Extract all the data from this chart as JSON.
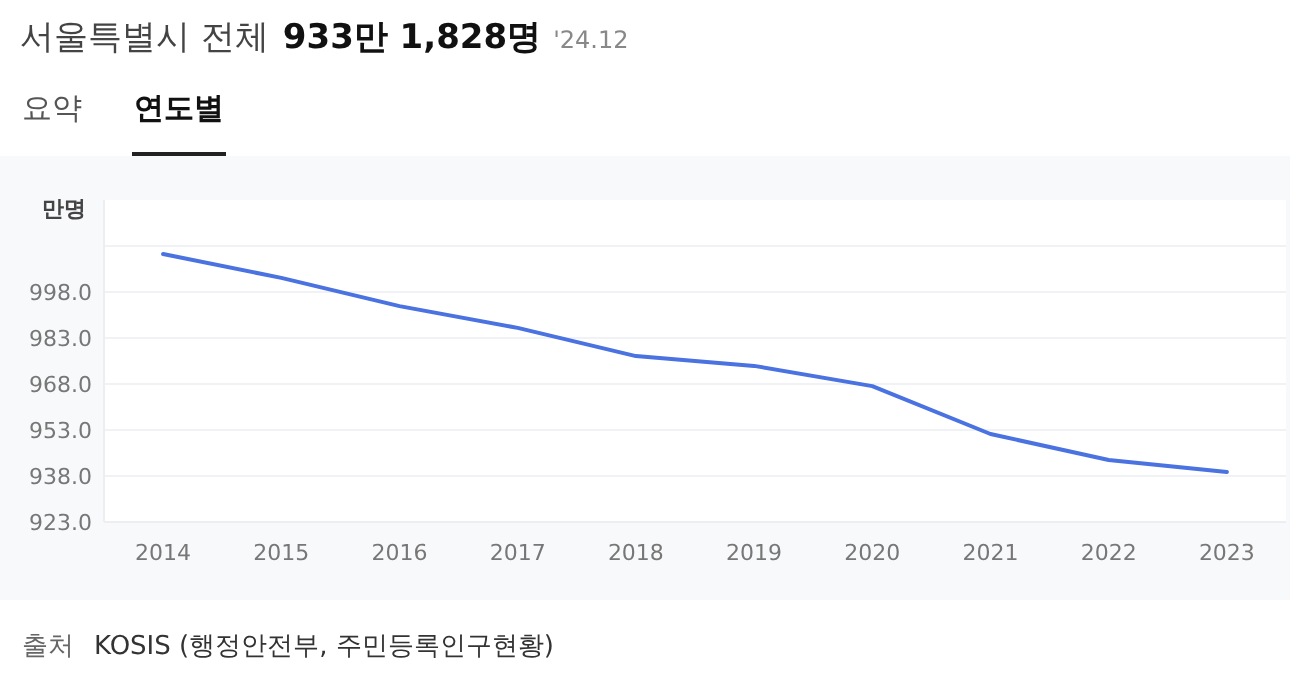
{
  "chart_data": {
    "type": "line",
    "title": "서울특별시 전체",
    "subtitle": "933만 1,828명",
    "ylabel": "만명",
    "annotations": [
      "'24.12",
      "요약",
      "연도별",
      "출처",
      "KOSIS (행정안전부, 주민등록인구현황)"
    ],
    "categories": [
      "2014",
      "2015",
      "2016",
      "2017",
      "2018",
      "2019",
      "2020",
      "2021",
      "2022",
      "2023"
    ],
    "series": [
      {
        "color": "#4a72e0",
        "values": [
          1010.4,
          1002.6,
          993.4,
          986.3,
          977.1,
          973.9,
          967.3,
          951.7,
          943.2,
          939.3
        ]
      }
    ],
    "ylim": [
      923,
      1028
    ],
    "yticks": [
      {
        "value": 923,
        "label": "923.0"
      },
      {
        "value": 938,
        "label": "938.0"
      },
      {
        "value": 953,
        "label": "953.0"
      },
      {
        "value": 968,
        "label": "968.0"
      },
      {
        "value": 983,
        "label": "983.0"
      },
      {
        "value": 998,
        "label": "998.0"
      },
      {
        "value": 1013,
        "label": null
      }
    ],
    "grid": "y",
    "marker": "none",
    "line_style": "solid"
  }
}
